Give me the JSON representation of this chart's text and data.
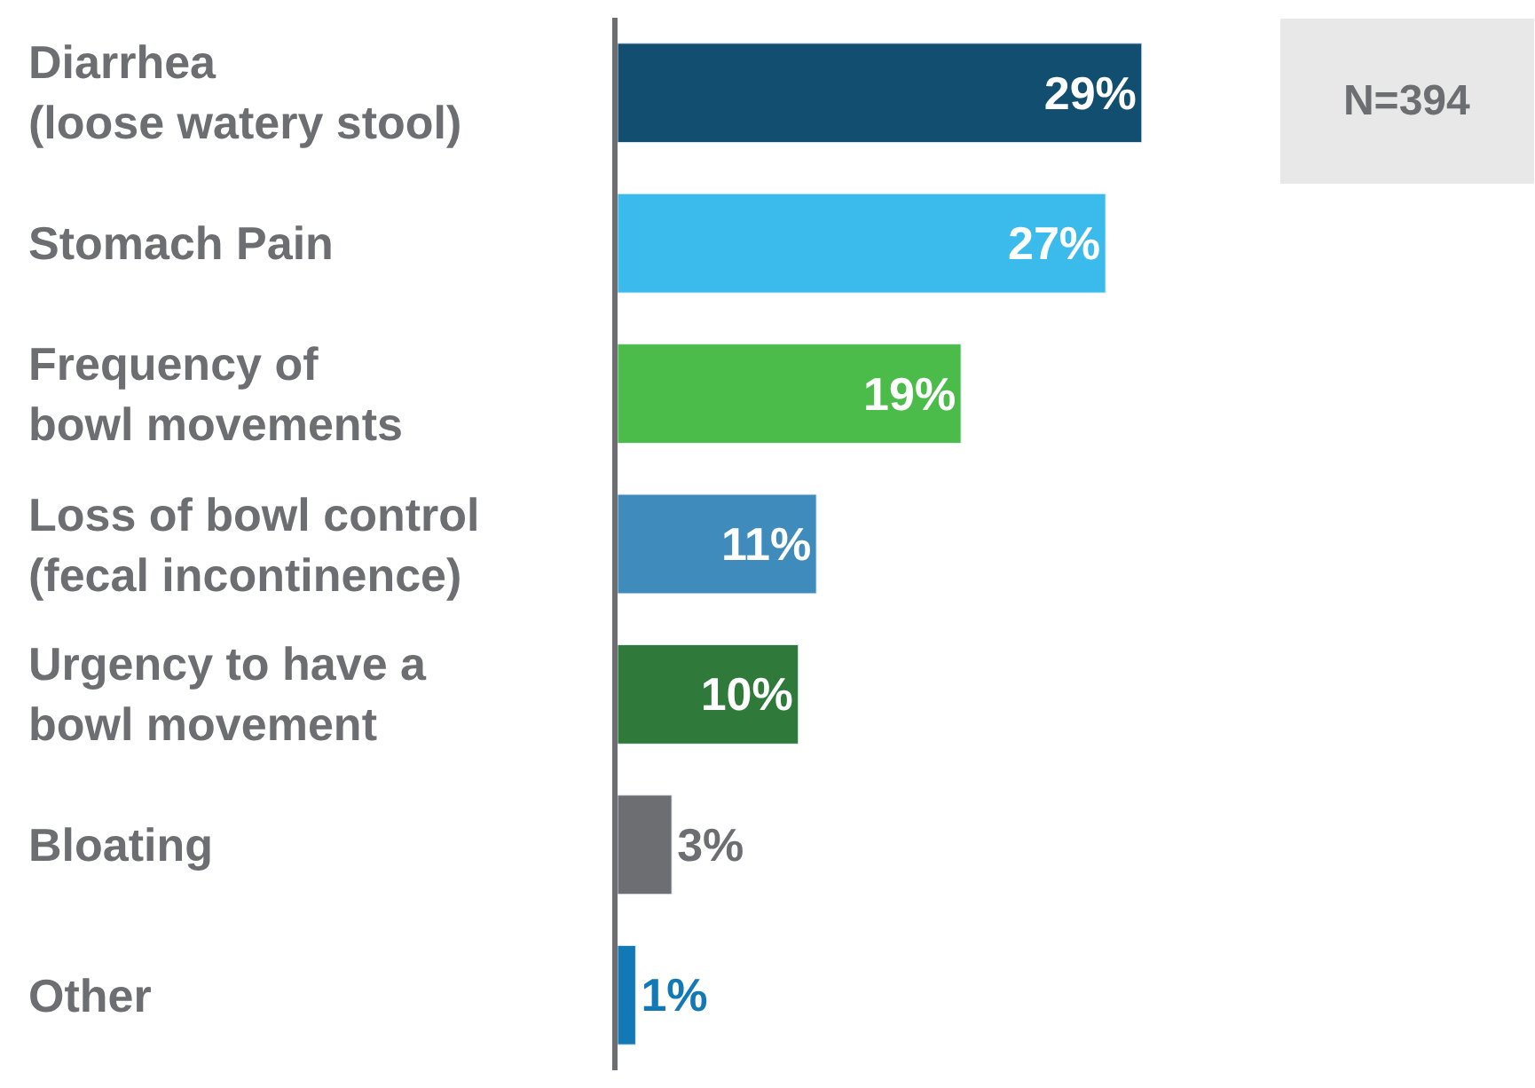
{
  "chart_data": {
    "type": "bar",
    "orientation": "horizontal",
    "categories": [
      "Diarrhea\n(loose watery stool)",
      "Stomach Pain",
      "Frequency of\nbowl movements",
      "Loss of bowl control\n(fecal incontinence)",
      "Urgency to have a\nbowl movement",
      "Bloating",
      "Other"
    ],
    "values": [
      29,
      27,
      19,
      11,
      10,
      3,
      1
    ],
    "value_labels": [
      "29%",
      "27%",
      "19%",
      "11%",
      "10%",
      "3%",
      "1%"
    ],
    "colors": [
      "#124e6f",
      "#3bbbeb",
      "#4bbc4a",
      "#3f8bbb",
      "#2f7a3a",
      "#6d6e71",
      "#1379b6"
    ],
    "annotations": [
      "N=394"
    ],
    "legend": false
  }
}
